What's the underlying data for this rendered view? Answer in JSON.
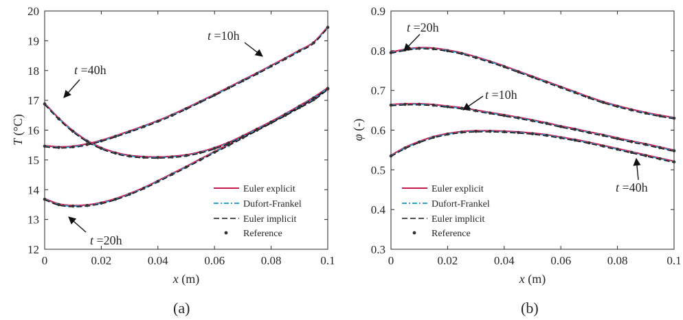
{
  "colors": {
    "euler_explicit": "#c8184a",
    "dufort_frankel": "#2aa3d4",
    "euler_implicit": "#111111",
    "reference": "#333333",
    "axes": "#262626",
    "annotation": "#111111"
  },
  "chart_data": [
    {
      "type": "line",
      "caption": "(a)",
      "xlabel": "x (m)",
      "ylabel": "T (°C)",
      "xlim": [
        0,
        0.1
      ],
      "ylim": [
        12,
        20
      ],
      "xticks": [
        "0",
        "0.02",
        "0.04",
        "0.06",
        "0.08",
        "0.1"
      ],
      "yticks": [
        "12",
        "13",
        "14",
        "15",
        "16",
        "17",
        "18",
        "19",
        "20"
      ],
      "grid": false,
      "legend_position": "bottom-right",
      "legend": [
        "Euler explicit",
        "Dufort-Frankel",
        "Euler implicit",
        "Reference"
      ],
      "x": [
        0,
        0.005,
        0.01,
        0.015,
        0.02,
        0.025,
        0.03,
        0.035,
        0.04,
        0.045,
        0.05,
        0.055,
        0.06,
        0.065,
        0.07,
        0.075,
        0.08,
        0.085,
        0.09,
        0.095,
        0.1
      ],
      "series": [
        {
          "name": "t = 10h",
          "values": [
            15.46,
            15.42,
            15.44,
            15.52,
            15.64,
            15.79,
            15.95,
            16.12,
            16.3,
            16.5,
            16.72,
            16.95,
            17.18,
            17.42,
            17.66,
            17.9,
            18.15,
            18.4,
            18.66,
            18.93,
            19.45
          ]
        },
        {
          "name": "t = 20h",
          "values": [
            13.68,
            13.5,
            13.45,
            13.47,
            13.55,
            13.68,
            13.85,
            14.05,
            14.28,
            14.52,
            14.76,
            15.01,
            15.26,
            15.5,
            15.75,
            16.0,
            16.25,
            16.5,
            16.76,
            17.02,
            17.38
          ]
        },
        {
          "name": "t = 40h",
          "values": [
            16.88,
            16.38,
            15.96,
            15.63,
            15.39,
            15.23,
            15.13,
            15.09,
            15.08,
            15.1,
            15.15,
            15.25,
            15.39,
            15.57,
            15.79,
            16.03,
            16.27,
            16.53,
            16.8,
            17.08,
            17.4
          ]
        }
      ],
      "annotations": [
        "t = 10h",
        "t = 40h",
        "t = 20h"
      ]
    },
    {
      "type": "line",
      "caption": "(b)",
      "xlabel": "x (m)",
      "ylabel": "φ (-)",
      "xlim": [
        0,
        0.1
      ],
      "ylim": [
        0.3,
        0.9
      ],
      "xticks": [
        "0",
        "0.02",
        "0.04",
        "0.06",
        "0.08",
        "0.1"
      ],
      "yticks": [
        "0.3",
        "0.4",
        "0.5",
        "0.6",
        "0.7",
        "0.8",
        "0.9"
      ],
      "grid": false,
      "legend_position": "bottom-left",
      "legend": [
        "Euler explicit",
        "Dufort-Frankel",
        "Euler implicit",
        "Reference"
      ],
      "x": [
        0,
        0.005,
        0.01,
        0.015,
        0.02,
        0.025,
        0.03,
        0.035,
        0.04,
        0.045,
        0.05,
        0.055,
        0.06,
        0.065,
        0.07,
        0.075,
        0.08,
        0.085,
        0.09,
        0.095,
        0.1
      ],
      "series": [
        {
          "name": "t = 20h",
          "values": [
            0.795,
            0.802,
            0.806,
            0.805,
            0.8,
            0.793,
            0.783,
            0.772,
            0.76,
            0.747,
            0.734,
            0.721,
            0.708,
            0.695,
            0.682,
            0.67,
            0.66,
            0.651,
            0.643,
            0.636,
            0.63
          ]
        },
        {
          "name": "t = 10h",
          "values": [
            0.663,
            0.665,
            0.665,
            0.663,
            0.659,
            0.655,
            0.649,
            0.643,
            0.637,
            0.631,
            0.624,
            0.617,
            0.609,
            0.602,
            0.594,
            0.587,
            0.579,
            0.571,
            0.564,
            0.556,
            0.548
          ]
        },
        {
          "name": "t = 40h",
          "values": [
            0.535,
            0.555,
            0.57,
            0.582,
            0.59,
            0.595,
            0.597,
            0.597,
            0.596,
            0.594,
            0.591,
            0.587,
            0.581,
            0.575,
            0.568,
            0.56,
            0.552,
            0.544,
            0.536,
            0.528,
            0.52
          ]
        }
      ],
      "annotations": [
        "t = 20h",
        "t = 10h",
        "t = 40h"
      ]
    }
  ]
}
